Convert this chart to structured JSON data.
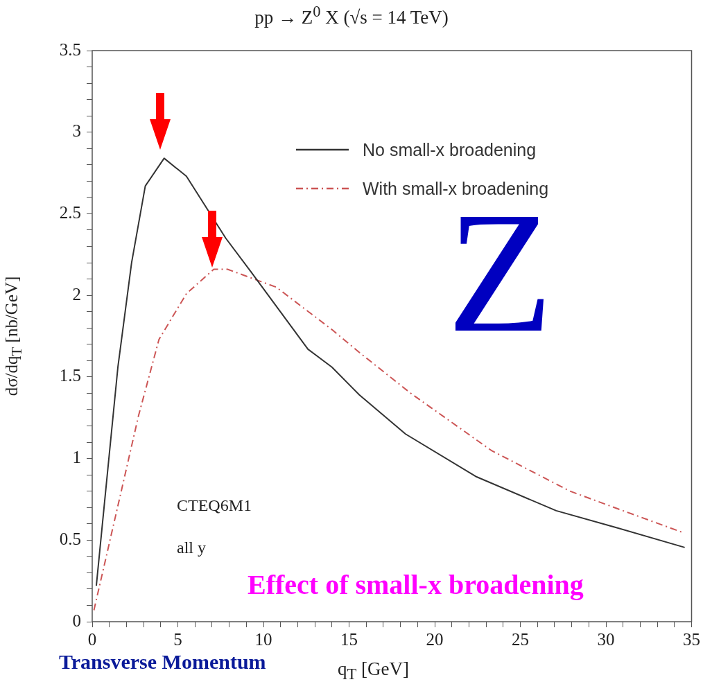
{
  "chart_data": {
    "type": "line",
    "title": "pp → Z$^{0}$ X   (√s = 14 TeV)",
    "xlabel": "q$_{T}$  [GeV]",
    "ylabel": "dσ/dq$_{T}$  [nb/GeV]",
    "xlim": [
      0,
      35
    ],
    "ylim": [
      0,
      3.5
    ],
    "xticks": [
      0,
      {
        "value": 1,
        "label": null
      },
      {
        "value": 2,
        "label": null
      },
      {
        "value": 3,
        "label": null
      },
      {
        "value": 4,
        "label": null
      },
      5,
      {
        "value": 6,
        "label": null
      },
      {
        "value": 7,
        "label": null
      },
      {
        "value": 8,
        "label": null
      },
      {
        "value": 9,
        "label": null
      },
      10,
      {
        "value": 11,
        "label": null
      },
      {
        "value": 12,
        "label": null
      },
      {
        "value": 13,
        "label": null
      },
      {
        "value": 14,
        "label": null
      },
      15,
      {
        "value": 16,
        "label": null
      },
      {
        "value": 17,
        "label": null
      },
      {
        "value": 18,
        "label": null
      },
      {
        "value": 19,
        "label": null
      },
      20,
      {
        "value": 21,
        "label": null
      },
      {
        "value": 22,
        "label": null
      },
      {
        "value": 23,
        "label": null
      },
      {
        "value": 24,
        "label": null
      },
      25,
      {
        "value": 26,
        "label": null
      },
      {
        "value": 27,
        "label": null
      },
      {
        "value": 28,
        "label": null
      },
      {
        "value": 29,
        "label": null
      },
      30,
      {
        "value": 31,
        "label": null
      },
      {
        "value": 32,
        "label": null
      },
      {
        "value": 33,
        "label": null
      },
      {
        "value": 34,
        "label": null
      },
      35
    ],
    "yticks": [
      0,
      {
        "value": 0.1,
        "label": null
      },
      {
        "value": 0.2,
        "label": null
      },
      {
        "value": 0.3,
        "label": null
      },
      {
        "value": 0.4,
        "label": null
      },
      0.5,
      {
        "value": 0.6,
        "label": null
      },
      {
        "value": 0.7,
        "label": null
      },
      {
        "value": 0.8,
        "label": null
      },
      {
        "value": 0.9,
        "label": null
      },
      1,
      {
        "value": 1.1,
        "label": null
      },
      {
        "value": 1.2,
        "label": null
      },
      {
        "value": 1.3,
        "label": null
      },
      {
        "value": 1.4,
        "label": null
      },
      1.5,
      {
        "value": 1.6,
        "label": null
      },
      {
        "value": 1.7,
        "label": null
      },
      {
        "value": 1.8,
        "label": null
      },
      {
        "value": 1.9,
        "label": null
      },
      2,
      {
        "value": 2.1,
        "label": null
      },
      {
        "value": 2.2,
        "label": null
      },
      {
        "value": 2.3,
        "label": null
      },
      {
        "value": 2.4,
        "label": null
      },
      2.5,
      {
        "value": 2.6,
        "label": null
      },
      {
        "value": 2.7,
        "label": null
      },
      {
        "value": 2.8,
        "label": null
      },
      {
        "value": 2.9,
        "label": null
      },
      3,
      {
        "value": 3.1,
        "label": null
      },
      {
        "value": 3.2,
        "label": null
      },
      {
        "value": 3.3,
        "label": null
      },
      {
        "value": 3.4,
        "label": null
      },
      3.5
    ],
    "grid": false,
    "legend": "top right",
    "series": [
      {
        "name": "No small-x broadening",
        "color": "#333333",
        "line_style": "solid",
        "x": [
          0.24,
          0.7,
          1.5,
          2.3,
          3.1,
          4.2,
          5.5,
          7.8,
          9.3,
          12.6,
          14.0,
          15.6,
          18.3,
          22.4,
          27.1,
          30.5,
          34.6
        ],
        "values": [
          0.22,
          0.71,
          1.56,
          2.2,
          2.67,
          2.84,
          2.73,
          2.35,
          2.14,
          1.67,
          1.56,
          1.39,
          1.15,
          0.89,
          0.68,
          0.58,
          0.455
        ]
      },
      {
        "name": "With small-x broadening",
        "color": "#cc5555",
        "line_style": "dashed",
        "x": [
          0.1,
          1.5,
          2.7,
          3.9,
          5.5,
          7.1,
          7.9,
          10.75,
          14.0,
          15.6,
          18.6,
          23.3,
          27.9,
          31.0,
          34.4
        ],
        "values": [
          0.07,
          0.71,
          1.26,
          1.73,
          2.01,
          2.16,
          2.16,
          2.05,
          1.79,
          1.65,
          1.4,
          1.05,
          0.8,
          0.68,
          0.55
        ]
      }
    ],
    "annotations": [
      "CTEQ6M1",
      "all  y",
      "Effect of small-x broadening",
      "Z",
      "Transverse Momentum"
    ]
  }
}
